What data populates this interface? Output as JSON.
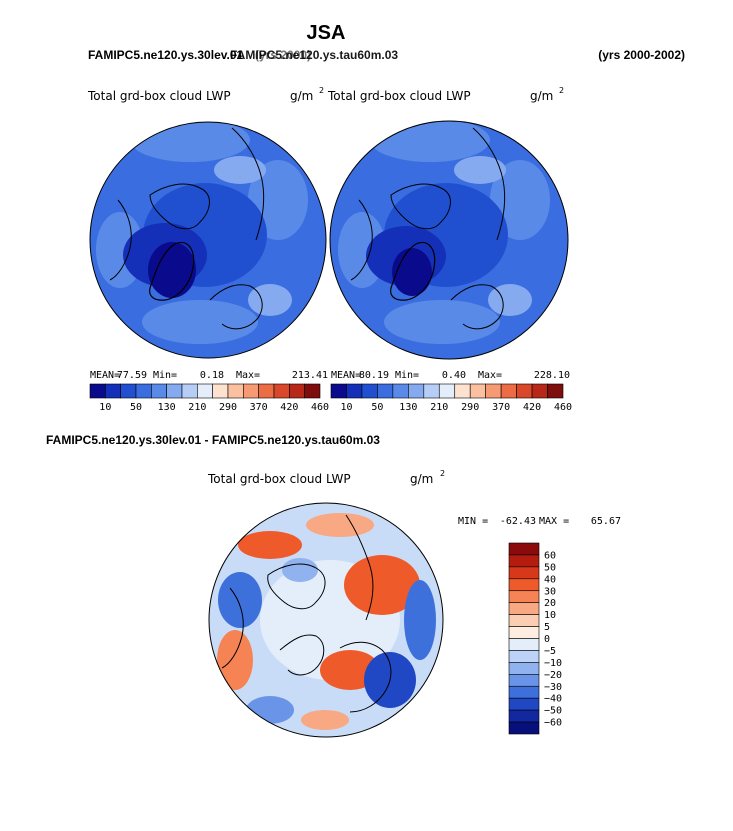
{
  "figure": {
    "season_title": "JSA",
    "top_left_label": "FAMIPC5.ne120.ys.30lev.01",
    "top_left_overlay_label": "FAMIPC5.ne120.ys.tau60m.03",
    "top_overlay_years": "(yrs 2000)",
    "top_right_label": "(yrs 2000-2002)",
    "diff_label": "FAMIPC5.ne120.ys.30lev.01 - FAMIPC5.ne120.ys.tau60m.03"
  },
  "chart_data": [
    {
      "type": "heatmap",
      "projection": "north polar stereographic",
      "title": "Total grd-box cloud LWP",
      "units": "g/m",
      "units_exponent": "2",
      "stats": {
        "mean_label": "MEAN=",
        "mean": "77.59",
        "min_label": "Min=",
        "min": "0.18",
        "max_label": "Max=",
        "max": "213.41"
      },
      "colorbar": {
        "levels": [
          "10",
          "50",
          "130",
          "210",
          "290",
          "370",
          "420",
          "460"
        ],
        "colors": [
          "#0a0a8c",
          "#1530b8",
          "#2050d0",
          "#3a6ee0",
          "#5a8ae8",
          "#86aaf0",
          "#b6cdf6",
          "#e4eefb",
          "#fde2cf",
          "#fbc0a0",
          "#f59a72",
          "#ec6d45",
          "#d9482a",
          "#b82818",
          "#7e0e0e"
        ]
      }
    },
    {
      "type": "heatmap",
      "projection": "north polar stereographic",
      "title": "Total grd-box cloud LWP",
      "units": "g/m",
      "units_exponent": "2",
      "stats": {
        "mean_label": "MEAN=",
        "mean": "80.19",
        "min_label": "Min=",
        "min": "0.40",
        "max_label": "Max=",
        "max": "228.10"
      },
      "colorbar": {
        "levels": [
          "10",
          "50",
          "130",
          "210",
          "290",
          "370",
          "420",
          "460"
        ],
        "colors": [
          "#0a0a8c",
          "#1530b8",
          "#2050d0",
          "#3a6ee0",
          "#5a8ae8",
          "#86aaf0",
          "#b6cdf6",
          "#e4eefb",
          "#fde2cf",
          "#fbc0a0",
          "#f59a72",
          "#ec6d45",
          "#d9482a",
          "#b82818",
          "#7e0e0e"
        ]
      }
    },
    {
      "type": "heatmap",
      "projection": "north polar stereographic",
      "title": "Total grd-box cloud LWP",
      "units": "g/m",
      "units_exponent": "2",
      "stats": {
        "min_label": "MIN =",
        "min": "-62.43",
        "max_label": "MAX =",
        "max": "65.67"
      },
      "colorbar": {
        "levels": [
          "60",
          "50",
          "40",
          "30",
          "20",
          "10",
          "5",
          "0",
          "−5",
          "−10",
          "−20",
          "−30",
          "−40",
          "−50",
          "−60"
        ],
        "colors": [
          "#8b0a0a",
          "#b51c10",
          "#d8381a",
          "#ee5a2a",
          "#f58354",
          "#f8a882",
          "#fbcdb2",
          "#fdece0",
          "#e4eefb",
          "#bcd2f6",
          "#90b2ee",
          "#6a94e8",
          "#3e70dc",
          "#2148c4",
          "#1228a0",
          "#07107a"
        ]
      }
    }
  ]
}
